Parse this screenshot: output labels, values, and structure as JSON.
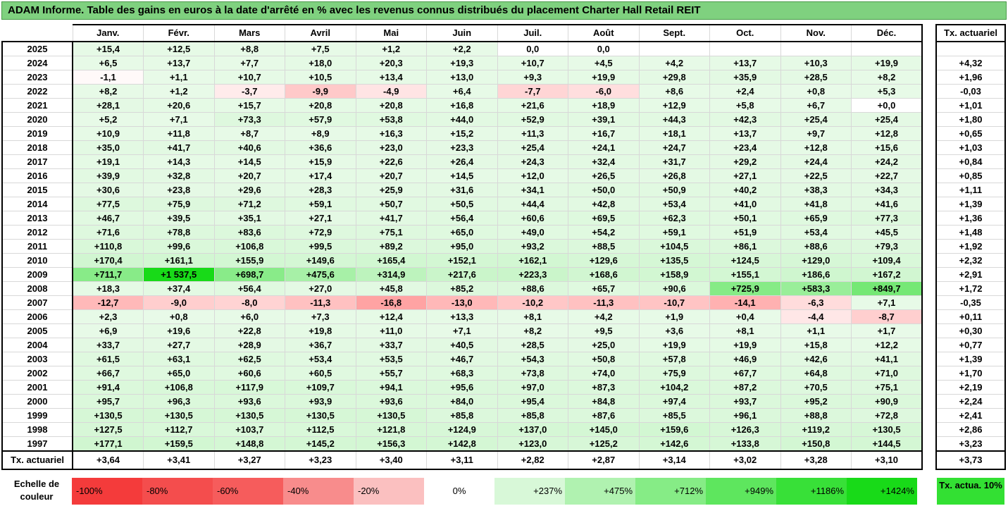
{
  "title": "ADAM Informe. Table des gains en euros à la date d'arrêté en % avec les revenus connus distribués du placement Charter Hall Retail REIT",
  "months": [
    "Janv.",
    "Févr.",
    "Mars",
    "Avril",
    "Mai",
    "Juin",
    "Juil.",
    "Août",
    "Sept.",
    "Oct.",
    "Nov.",
    "Déc."
  ],
  "side_header": "Tx. actuariel",
  "rows": [
    {
      "year": "2025",
      "v": [
        "+15,4",
        "+12,5",
        "+8,8",
        "+7,5",
        "+1,2",
        "+2,2",
        "0,0",
        "0,0",
        "",
        "",
        "",
        ""
      ],
      "t": ""
    },
    {
      "year": "2024",
      "v": [
        "+6,5",
        "+13,7",
        "+7,7",
        "+18,0",
        "+20,3",
        "+19,3",
        "+10,7",
        "+4,5",
        "+4,2",
        "+13,7",
        "+10,3",
        "+19,9"
      ],
      "t": "+4,32"
    },
    {
      "year": "2023",
      "v": [
        "-1,1",
        "+1,1",
        "+10,7",
        "+10,5",
        "+13,4",
        "+13,0",
        "+9,3",
        "+19,9",
        "+29,8",
        "+35,9",
        "+28,5",
        "+8,2"
      ],
      "t": "+1,96"
    },
    {
      "year": "2022",
      "v": [
        "+8,2",
        "+1,2",
        "-3,7",
        "-9,9",
        "-4,9",
        "+6,4",
        "-7,7",
        "-6,0",
        "+8,6",
        "+2,4",
        "+0,8",
        "+5,3"
      ],
      "t": "-0,03"
    },
    {
      "year": "2021",
      "v": [
        "+28,1",
        "+20,6",
        "+15,7",
        "+20,8",
        "+20,8",
        "+16,8",
        "+21,6",
        "+18,9",
        "+12,9",
        "+5,8",
        "+6,7",
        "+0,0"
      ],
      "t": "+1,01"
    },
    {
      "year": "2020",
      "v": [
        "+5,2",
        "+7,1",
        "+73,3",
        "+57,9",
        "+53,8",
        "+44,0",
        "+52,9",
        "+39,1",
        "+44,3",
        "+42,3",
        "+25,4",
        "+25,4"
      ],
      "t": "+1,80"
    },
    {
      "year": "2019",
      "v": [
        "+10,9",
        "+11,8",
        "+8,7",
        "+8,9",
        "+16,3",
        "+15,2",
        "+11,3",
        "+16,7",
        "+18,1",
        "+13,7",
        "+9,7",
        "+12,8"
      ],
      "t": "+0,65"
    },
    {
      "year": "2018",
      "v": [
        "+35,0",
        "+41,7",
        "+40,6",
        "+36,6",
        "+23,0",
        "+23,3",
        "+25,4",
        "+24,1",
        "+24,7",
        "+23,4",
        "+12,8",
        "+15,6"
      ],
      "t": "+1,03"
    },
    {
      "year": "2017",
      "v": [
        "+19,1",
        "+14,3",
        "+14,5",
        "+15,9",
        "+22,6",
        "+26,4",
        "+24,3",
        "+32,4",
        "+31,7",
        "+29,2",
        "+24,4",
        "+24,2"
      ],
      "t": "+0,84"
    },
    {
      "year": "2016",
      "v": [
        "+39,9",
        "+32,8",
        "+20,7",
        "+17,4",
        "+20,7",
        "+14,5",
        "+12,0",
        "+26,5",
        "+26,8",
        "+27,1",
        "+22,5",
        "+22,7"
      ],
      "t": "+0,85"
    },
    {
      "year": "2015",
      "v": [
        "+30,6",
        "+23,8",
        "+29,6",
        "+28,3",
        "+25,9",
        "+31,6",
        "+34,1",
        "+50,0",
        "+50,9",
        "+40,2",
        "+38,3",
        "+34,3"
      ],
      "t": "+1,11"
    },
    {
      "year": "2014",
      "v": [
        "+77,5",
        "+75,9",
        "+71,2",
        "+59,1",
        "+50,7",
        "+50,5",
        "+44,4",
        "+42,8",
        "+53,4",
        "+41,0",
        "+41,8",
        "+41,6"
      ],
      "t": "+1,39"
    },
    {
      "year": "2013",
      "v": [
        "+46,7",
        "+39,5",
        "+35,1",
        "+27,1",
        "+41,7",
        "+56,4",
        "+60,6",
        "+69,5",
        "+62,3",
        "+50,1",
        "+65,9",
        "+77,3"
      ],
      "t": "+1,36"
    },
    {
      "year": "2012",
      "v": [
        "+71,6",
        "+78,8",
        "+83,6",
        "+72,9",
        "+75,1",
        "+65,0",
        "+49,0",
        "+54,2",
        "+59,1",
        "+51,9",
        "+53,4",
        "+45,5"
      ],
      "t": "+1,48"
    },
    {
      "year": "2011",
      "v": [
        "+110,8",
        "+99,6",
        "+106,8",
        "+99,5",
        "+89,2",
        "+95,0",
        "+93,2",
        "+88,5",
        "+104,5",
        "+86,1",
        "+88,6",
        "+79,3"
      ],
      "t": "+1,92"
    },
    {
      "year": "2010",
      "v": [
        "+170,4",
        "+161,1",
        "+155,9",
        "+149,6",
        "+165,4",
        "+152,1",
        "+162,1",
        "+129,6",
        "+135,5",
        "+124,5",
        "+129,0",
        "+109,4"
      ],
      "t": "+2,32"
    },
    {
      "year": "2009",
      "v": [
        "+711,7",
        "+1 537,5",
        "+698,7",
        "+475,6",
        "+314,9",
        "+217,6",
        "+223,3",
        "+168,6",
        "+158,9",
        "+155,1",
        "+186,6",
        "+167,2"
      ],
      "t": "+2,91"
    },
    {
      "year": "2008",
      "v": [
        "+18,3",
        "+37,4",
        "+56,4",
        "+27,0",
        "+45,8",
        "+85,2",
        "+88,6",
        "+65,7",
        "+90,6",
        "+725,9",
        "+583,3",
        "+849,7"
      ],
      "t": "+1,72"
    },
    {
      "year": "2007",
      "v": [
        "-12,7",
        "-9,0",
        "-8,0",
        "-11,3",
        "-16,8",
        "-13,0",
        "-10,2",
        "-11,3",
        "-10,7",
        "-14,1",
        "-6,3",
        "+7,1"
      ],
      "t": "-0,35"
    },
    {
      "year": "2006",
      "v": [
        "+2,3",
        "+0,8",
        "+6,0",
        "+7,3",
        "+12,4",
        "+13,3",
        "+8,1",
        "+4,2",
        "+1,9",
        "+0,4",
        "-4,4",
        "-8,7"
      ],
      "t": "+0,11"
    },
    {
      "year": "2005",
      "v": [
        "+6,9",
        "+19,6",
        "+22,8",
        "+19,8",
        "+11,0",
        "+7,1",
        "+8,2",
        "+9,5",
        "+3,6",
        "+8,1",
        "+1,1",
        "+1,7"
      ],
      "t": "+0,30"
    },
    {
      "year": "2004",
      "v": [
        "+33,7",
        "+27,7",
        "+28,9",
        "+36,7",
        "+33,7",
        "+40,5",
        "+28,5",
        "+25,0",
        "+19,9",
        "+19,9",
        "+15,8",
        "+12,2"
      ],
      "t": "+0,77"
    },
    {
      "year": "2003",
      "v": [
        "+61,5",
        "+63,1",
        "+62,5",
        "+53,4",
        "+53,5",
        "+46,7",
        "+54,3",
        "+50,8",
        "+57,8",
        "+46,9",
        "+42,6",
        "+41,1"
      ],
      "t": "+1,39"
    },
    {
      "year": "2002",
      "v": [
        "+66,7",
        "+65,0",
        "+60,6",
        "+60,5",
        "+55,7",
        "+68,3",
        "+73,8",
        "+74,0",
        "+75,9",
        "+67,7",
        "+64,8",
        "+71,0"
      ],
      "t": "+1,70"
    },
    {
      "year": "2001",
      "v": [
        "+91,4",
        "+106,8",
        "+117,9",
        "+109,7",
        "+94,1",
        "+95,6",
        "+97,0",
        "+87,3",
        "+104,2",
        "+87,2",
        "+70,5",
        "+75,1"
      ],
      "t": "+2,19"
    },
    {
      "year": "2000",
      "v": [
        "+95,7",
        "+96,3",
        "+93,6",
        "+93,9",
        "+93,6",
        "+84,0",
        "+95,4",
        "+84,8",
        "+97,4",
        "+93,7",
        "+95,2",
        "+90,9"
      ],
      "t": "+2,24"
    },
    {
      "year": "1999",
      "v": [
        "+130,5",
        "+130,5",
        "+130,5",
        "+130,5",
        "+130,5",
        "+85,8",
        "+85,8",
        "+87,6",
        "+85,5",
        "+96,1",
        "+88,8",
        "+72,8"
      ],
      "t": "+2,41"
    },
    {
      "year": "1998",
      "v": [
        "+127,5",
        "+112,7",
        "+103,7",
        "+112,5",
        "+121,8",
        "+124,9",
        "+137,0",
        "+145,0",
        "+159,6",
        "+126,3",
        "+119,2",
        "+130,5"
      ],
      "t": "+2,86"
    },
    {
      "year": "1997",
      "v": [
        "+177,1",
        "+159,5",
        "+148,8",
        "+145,2",
        "+156,3",
        "+142,8",
        "+123,0",
        "+125,2",
        "+142,6",
        "+133,8",
        "+150,8",
        "+144,5"
      ],
      "t": "+3,23"
    }
  ],
  "footer": {
    "label": "Tx. actuariel",
    "v": [
      "+3,64",
      "+3,41",
      "+3,27",
      "+3,23",
      "+3,40",
      "+3,11",
      "+2,82",
      "+2,87",
      "+3,14",
      "+3,02",
      "+3,28",
      "+3,10"
    ],
    "t": "+3,73"
  },
  "legend": {
    "label": "Echelle de couleur",
    "items": [
      {
        "text": "-100%",
        "color": "#f43b3b"
      },
      {
        "text": "-80%",
        "color": "#f44d4d"
      },
      {
        "text": "-60%",
        "color": "#f65c5c"
      },
      {
        "text": "-40%",
        "color": "#f88c8c"
      },
      {
        "text": "-20%",
        "color": "#fbc0c0"
      },
      {
        "text": "0%",
        "color": "#ffffff"
      },
      {
        "text": "+237%",
        "color": "#d8f8d8"
      },
      {
        "text": "+475%",
        "color": "#b0f2b0"
      },
      {
        "text": "+712%",
        "color": "#86ec86"
      },
      {
        "text": "+949%",
        "color": "#5ee65e"
      },
      {
        "text": "+1186%",
        "color": "#38e038"
      },
      {
        "text": "+1424%",
        "color": "#18da18"
      }
    ],
    "side": "Tx. actua. 10%"
  }
}
